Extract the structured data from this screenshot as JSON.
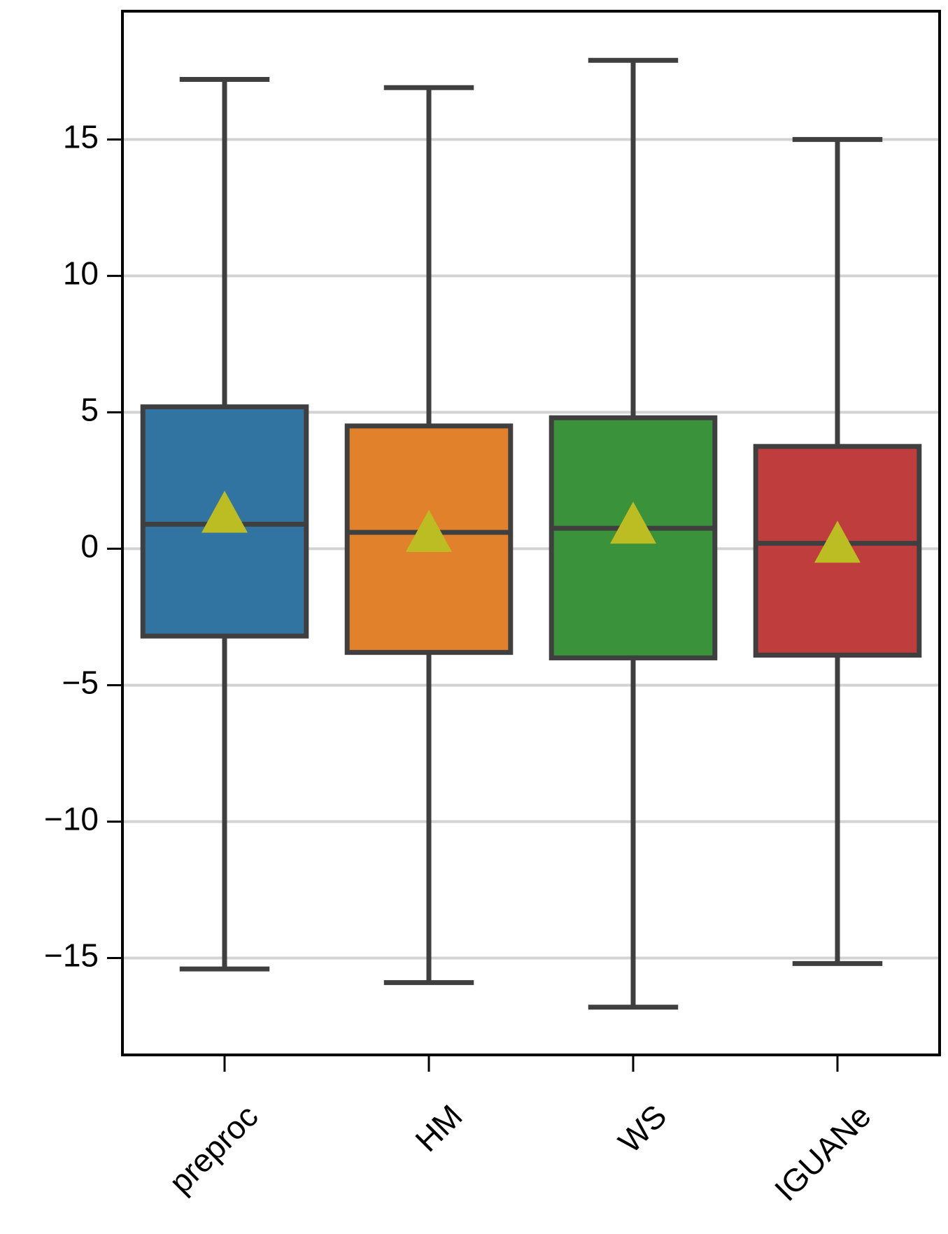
{
  "chart_data": {
    "type": "box",
    "series": [
      {
        "name": "preproc",
        "color": "#3274a1",
        "whislo": -15.4,
        "q1": -3.2,
        "median": 0.9,
        "q3": 5.2,
        "whishi": 17.2,
        "mean": 1.1
      },
      {
        "name": "HM",
        "color": "#e1812c",
        "whislo": -15.9,
        "q1": -3.8,
        "median": 0.6,
        "q3": 4.5,
        "whishi": 16.9,
        "mean": 0.4
      },
      {
        "name": "WS",
        "color": "#3a923a",
        "whislo": -16.8,
        "q1": -4.0,
        "median": 0.75,
        "q3": 4.8,
        "whishi": 17.9,
        "mean": 0.7
      },
      {
        "name": "IGUANe",
        "color": "#c03d3e",
        "whislo": -15.2,
        "q1": -3.9,
        "median": 0.2,
        "q3": 3.75,
        "whishi": 15.0,
        "mean": 0.0
      }
    ],
    "edge_color": "#3f3f3f",
    "mean_color": "#bcbd22",
    "ylim": [
      -18.55,
      19.7
    ],
    "yticks": [
      {
        "value": -15,
        "label": "−15"
      },
      {
        "value": -10,
        "label": "−10"
      },
      {
        "value": -5,
        "label": "−5"
      },
      0,
      5,
      10,
      15
    ],
    "grid": true
  }
}
